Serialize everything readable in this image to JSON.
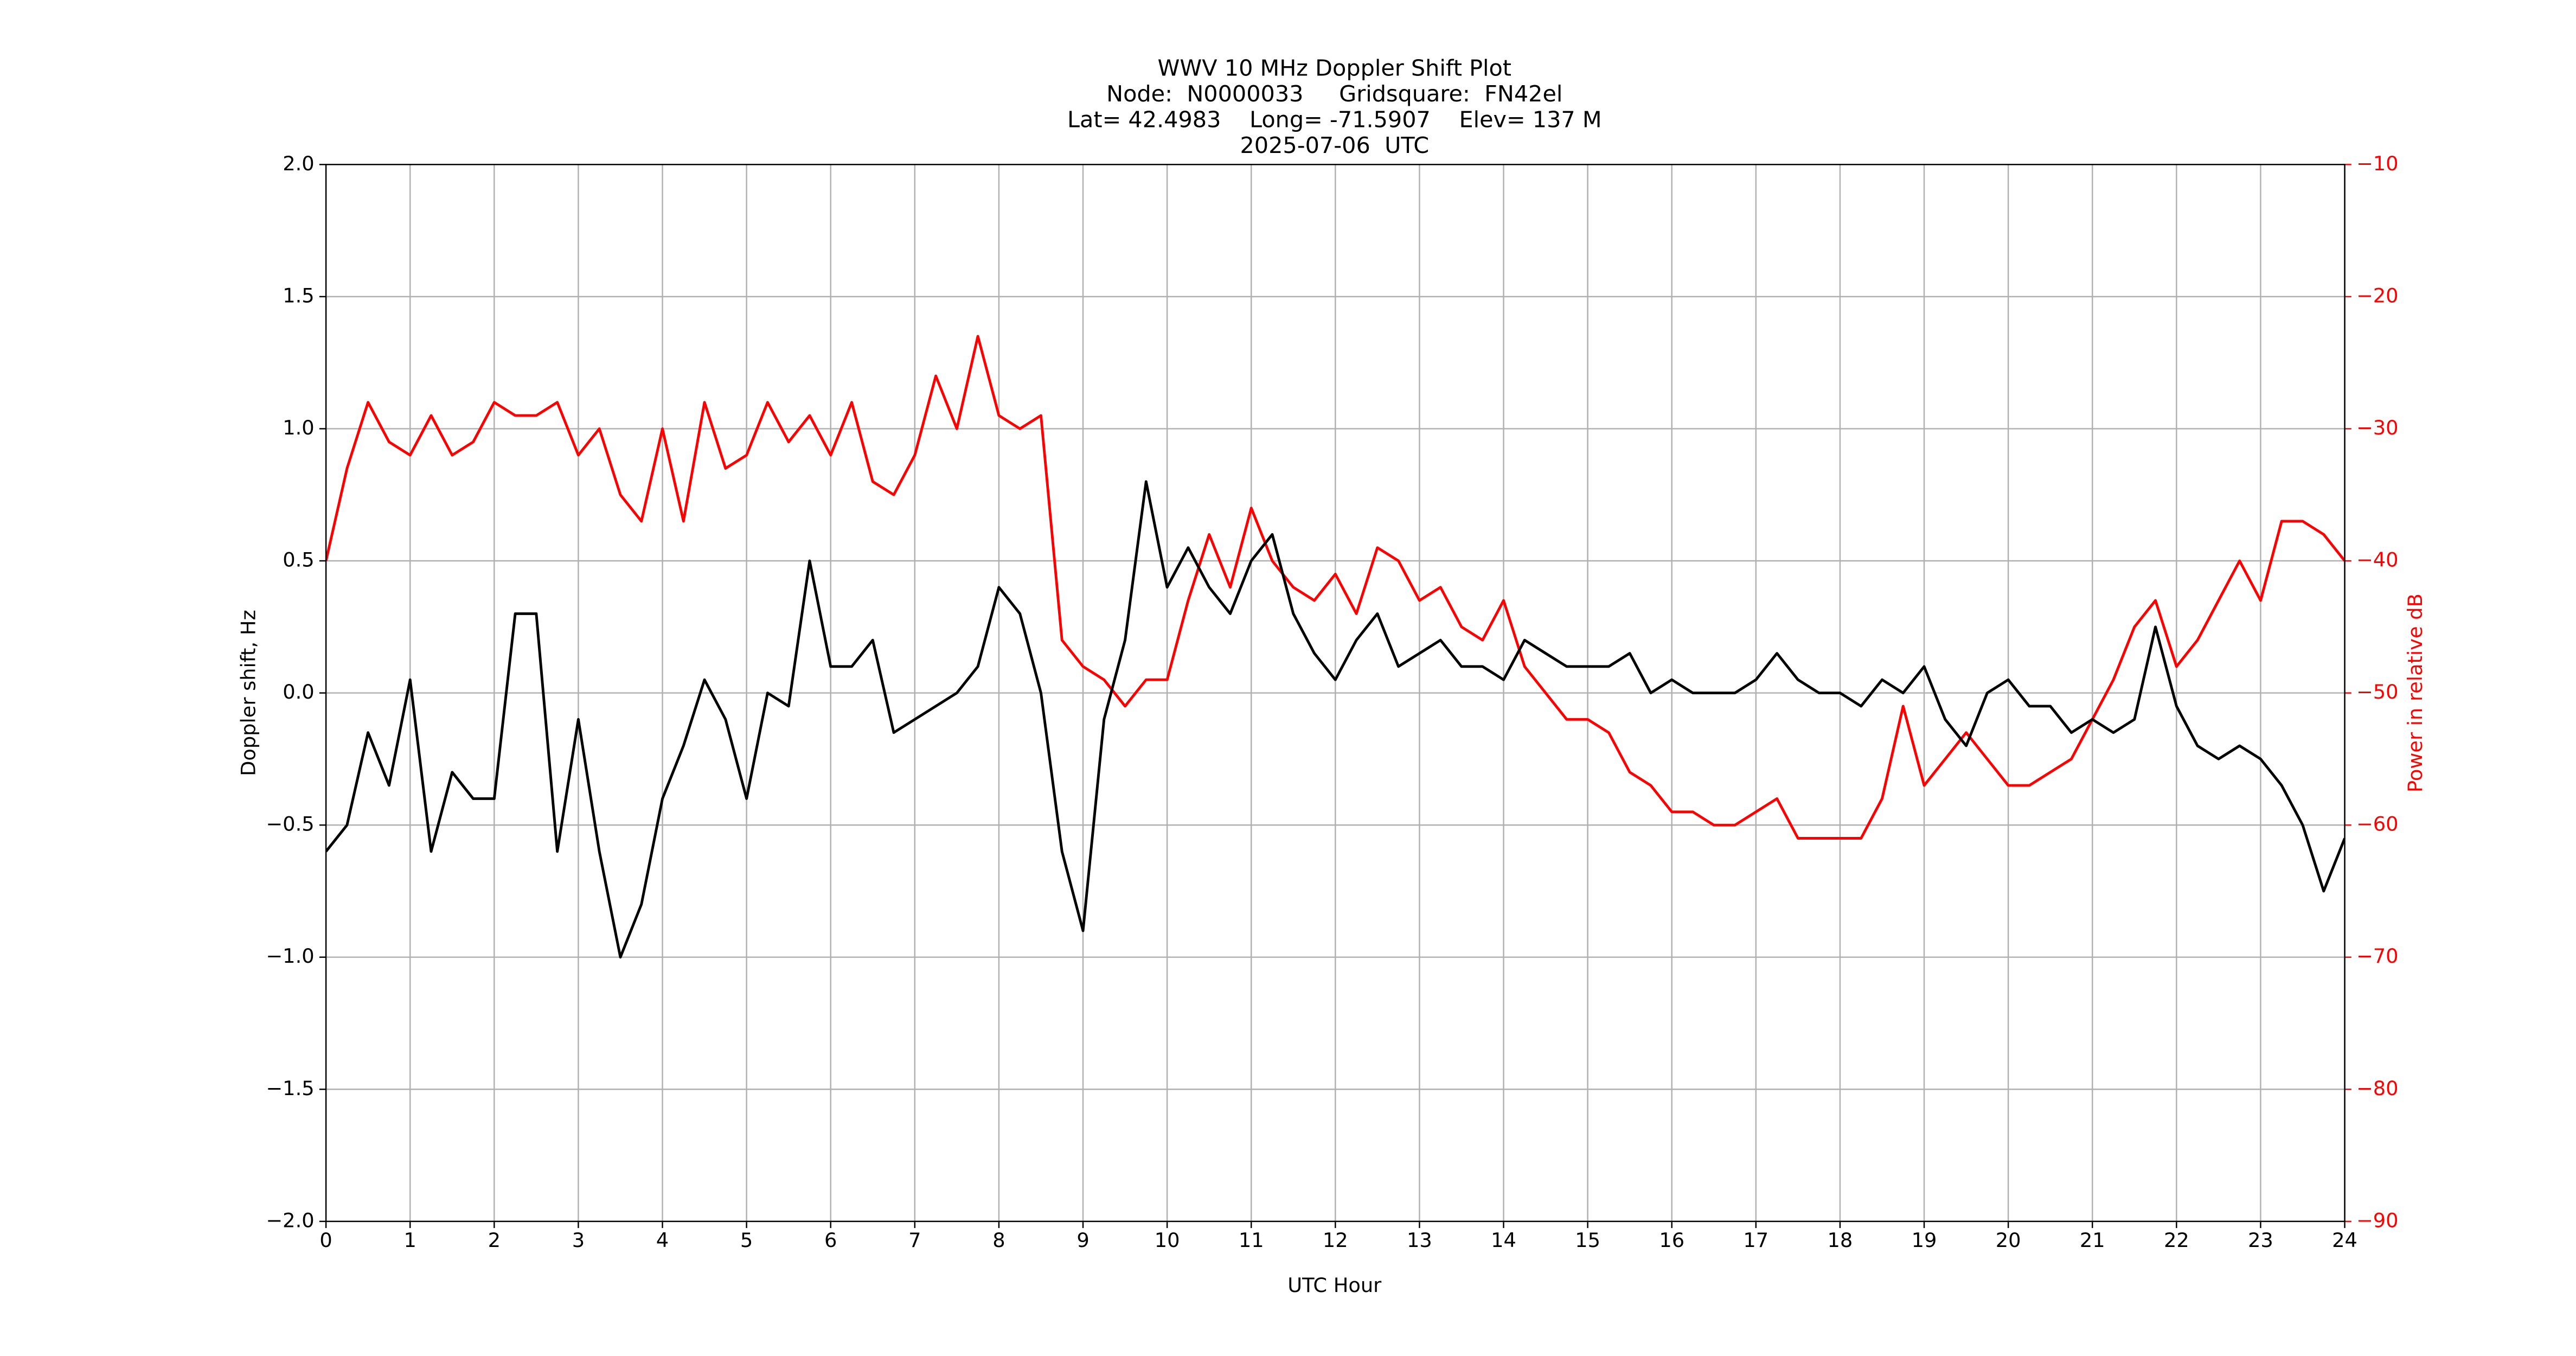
{
  "chart_data": {
    "type": "line",
    "title": [
      "WWV 10 MHz Doppler Shift Plot",
      "Node:  N0000033     Gridsquare:  FN42el",
      "Lat= 42.4983    Long= -71.5907    Elev= 137 M",
      "2025-07-06  UTC"
    ],
    "x_label": "UTC Hour",
    "y_label": "Doppler shift, Hz",
    "y2_label": "Power in relative dB",
    "grid": true,
    "y2_color": "#ff0000",
    "xlim": [
      0,
      24
    ],
    "xticks": [
      0,
      1,
      2,
      3,
      4,
      5,
      6,
      7,
      8,
      9,
      10,
      11,
      12,
      13,
      14,
      15,
      16,
      17,
      18,
      19,
      20,
      21,
      22,
      23,
      24
    ],
    "ylim": [
      -2,
      2
    ],
    "yticks": [
      {
        "value": -2,
        "label": "−2.0"
      },
      {
        "value": -1.5,
        "label": "−1.5"
      },
      {
        "value": -1,
        "label": "−1.0"
      },
      {
        "value": -0.5,
        "label": "−0.5"
      },
      {
        "value": 0,
        "label": "0.0"
      },
      {
        "value": 0.5,
        "label": "0.5"
      },
      {
        "value": 1,
        "label": "1.0"
      },
      {
        "value": 1.5,
        "label": "1.5"
      },
      {
        "value": 2,
        "label": "2.0"
      }
    ],
    "y2lim": [
      -90,
      -10
    ],
    "y2ticks": [
      {
        "value": -90,
        "label": "−90"
      },
      {
        "value": -80,
        "label": "−80"
      },
      {
        "value": -70,
        "label": "−70"
      },
      {
        "value": -60,
        "label": "−60"
      },
      {
        "value": -50,
        "label": "−50"
      },
      {
        "value": -40,
        "label": "−40"
      },
      {
        "value": -30,
        "label": "−30"
      },
      {
        "value": -20,
        "label": "−20"
      },
      {
        "value": -10,
        "label": "−10"
      }
    ],
    "x": [
      0,
      0.25,
      0.5,
      0.75,
      1,
      1.25,
      1.5,
      1.75,
      2,
      2.25,
      2.5,
      2.75,
      3,
      3.25,
      3.5,
      3.75,
      4,
      4.25,
      4.5,
      4.75,
      5,
      5.25,
      5.5,
      5.75,
      6,
      6.25,
      6.5,
      6.75,
      7,
      7.25,
      7.5,
      7.75,
      8,
      8.25,
      8.5,
      8.75,
      9,
      9.25,
      9.5,
      9.75,
      10,
      10.25,
      10.5,
      10.75,
      11,
      11.25,
      11.5,
      11.75,
      12,
      12.25,
      12.5,
      12.75,
      13,
      13.25,
      13.5,
      13.75,
      14,
      14.25,
      14.5,
      14.75,
      15,
      15.25,
      15.5,
      15.75,
      16,
      16.25,
      16.5,
      16.75,
      17,
      17.25,
      17.5,
      17.75,
      18,
      18.25,
      18.5,
      18.75,
      19,
      19.25,
      19.5,
      19.75,
      20,
      20.25,
      20.5,
      20.75,
      21,
      21.25,
      21.5,
      21.75,
      22,
      22.25,
      22.5,
      22.75,
      23,
      23.25,
      23.5,
      23.75,
      24
    ],
    "series": [
      {
        "color": "#000000",
        "values": [
          -0.6,
          -0.5,
          -0.15,
          -0.35,
          0.05,
          -0.6,
          -0.3,
          -0.4,
          -0.4,
          0.3,
          0.3,
          -0.6,
          -0.1,
          -0.6,
          -1.0,
          -0.8,
          -0.4,
          -0.2,
          0.05,
          -0.1,
          -0.4,
          0.0,
          -0.05,
          0.5,
          0.1,
          0.1,
          0.2,
          -0.15,
          -0.1,
          -0.05,
          0.0,
          0.1,
          0.4,
          0.3,
          0.0,
          -0.6,
          -0.9,
          -0.1,
          0.2,
          0.8,
          0.4,
          0.55,
          0.4,
          0.3,
          0.5,
          0.6,
          0.3,
          0.15,
          0.05,
          0.2,
          0.3,
          0.1,
          0.15,
          0.2,
          0.1,
          0.1,
          0.05,
          0.2,
          0.15,
          0.1,
          0.1,
          0.1,
          0.15,
          0.0,
          0.05,
          0.0,
          0.0,
          0.0,
          0.05,
          0.15,
          0.05,
          0.0,
          0.0,
          -0.05,
          0.05,
          0.0,
          0.1,
          -0.1,
          -0.2,
          0.0,
          0.05,
          -0.05,
          -0.05,
          -0.15,
          -0.1,
          -0.15,
          -0.1,
          0.25,
          -0.05,
          -0.2,
          -0.25,
          -0.2,
          -0.25,
          -0.35,
          -0.5,
          -0.75,
          -0.55
        ]
      },
      {
        "color": "#ff0000",
        "axis": "y2",
        "values": [
          -40,
          -33,
          -28,
          -31,
          -32,
          -29,
          -32,
          -31,
          -28,
          -29,
          -29,
          -28,
          -32,
          -30,
          -35,
          -37,
          -30,
          -37,
          -28,
          -33,
          -32,
          -28,
          -31,
          -29,
          -32,
          -28,
          -34,
          -35,
          -32,
          -26,
          -30,
          -23,
          -29,
          -30,
          -29,
          -46,
          -48,
          -49,
          -51,
          -49,
          -49,
          -43,
          -38,
          -42,
          -36,
          -40,
          -42,
          -43,
          -41,
          -44,
          -39,
          -40,
          -43,
          -42,
          -45,
          -46,
          -43,
          -48,
          -50,
          -52,
          -52,
          -53,
          -56,
          -57,
          -59,
          -59,
          -60,
          -60,
          -59,
          -58,
          -61,
          -61,
          -61,
          -61,
          -58,
          -51,
          -57,
          -55,
          -53,
          -55,
          -57,
          -57,
          -56,
          -55,
          -52,
          -49,
          -45,
          -43,
          -48,
          -46,
          -43,
          -40,
          -43,
          -37,
          -37,
          -38,
          -40
        ]
      }
    ]
  }
}
